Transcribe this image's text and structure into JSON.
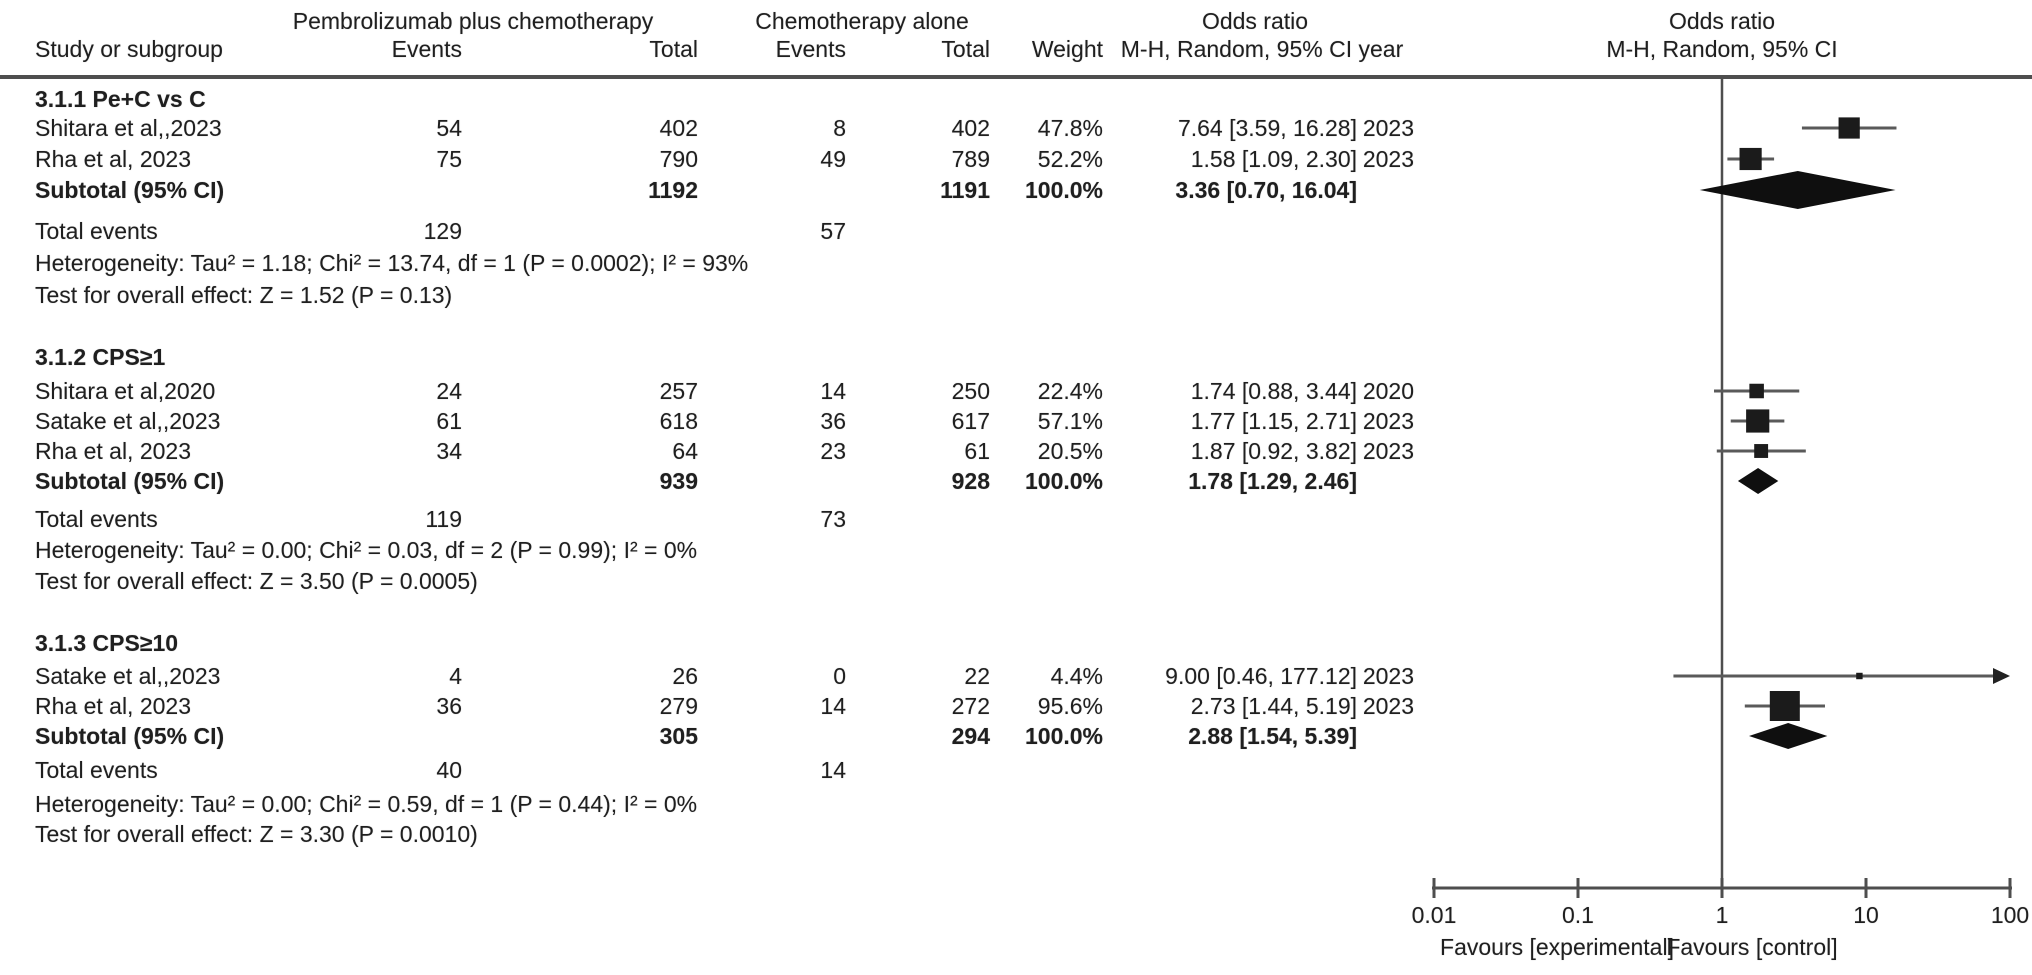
{
  "header": {
    "group1": "Pembrolizumab plus chemotherapy",
    "group2": "Chemotherapy alone",
    "col_study": "Study or subgroup",
    "col_events1": "Events",
    "col_total1": "Total",
    "col_events2": "Events",
    "col_total2": "Total",
    "col_weight": "Weight",
    "or_left_line1": "Odds ratio",
    "or_left_line2": "M-H, Random, 95% CI year",
    "or_right_line1": "Odds ratio",
    "or_right_line2": "M-H, Random, 95% CI"
  },
  "sections": [
    {
      "title": "3.1.1 Pe+C vs C",
      "studies": [
        {
          "name": "Shitara et al,,2023",
          "events1": "54",
          "total1": "402",
          "events2": "8",
          "total2": "402",
          "weight": "47.8%",
          "or_ci": "7.64 [3.59, 16.28]",
          "year": "2023"
        },
        {
          "name": "Rha et al, 2023",
          "events1": "75",
          "total1": "790",
          "events2": "49",
          "total2": "789",
          "weight": "52.2%",
          "or_ci": "1.58 [1.09, 2.30]",
          "year": "2023"
        }
      ],
      "subtotal": {
        "label": "Subtotal (95% CI)",
        "total1": "1192",
        "total2": "1191",
        "weight": "100.0%",
        "or_ci": "3.36 [0.70, 16.04]"
      },
      "total_events": {
        "label": "Total events",
        "events1": "129",
        "events2": "57"
      },
      "heterogeneity": "Heterogeneity: Tau² = 1.18; Chi² = 13.74, df = 1 (P = 0.0002); I² = 93%",
      "overall_effect": "Test for overall effect: Z = 1.52 (P = 0.13)"
    },
    {
      "title": "3.1.2 CPS≥1",
      "studies": [
        {
          "name": "Shitara et al,2020",
          "events1": "24",
          "total1": "257",
          "events2": "14",
          "total2": "250",
          "weight": "22.4%",
          "or_ci": "1.74 [0.88, 3.44]",
          "year": "2020"
        },
        {
          "name": "Satake et al,,2023",
          "events1": "61",
          "total1": "618",
          "events2": "36",
          "total2": "617",
          "weight": "57.1%",
          "or_ci": "1.77 [1.15, 2.71]",
          "year": "2023"
        },
        {
          "name": "Rha et al, 2023",
          "events1": "34",
          "total1": "64",
          "events2": "23",
          "total2": "61",
          "weight": "20.5%",
          "or_ci": "1.87 [0.92, 3.82]",
          "year": "2023"
        }
      ],
      "subtotal": {
        "label": "Subtotal (95% CI)",
        "total1": "939",
        "total2": "928",
        "weight": "100.0%",
        "or_ci": "1.78 [1.29, 2.46]"
      },
      "total_events": {
        "label": "Total events",
        "events1": "119",
        "events2": "73"
      },
      "heterogeneity": "Heterogeneity: Tau² = 0.00; Chi² = 0.03, df = 2 (P = 0.99); I² = 0%",
      "overall_effect": "Test for overall effect: Z = 3.50 (P = 0.0005)"
    },
    {
      "title": "3.1.3 CPS≥10",
      "studies": [
        {
          "name": "Satake et al,,2023",
          "events1": "4",
          "total1": "26",
          "events2": "0",
          "total2": "22",
          "weight": "4.4%",
          "or_ci": "9.00 [0.46, 177.12]",
          "year": "2023"
        },
        {
          "name": "Rha et al, 2023",
          "events1": "36",
          "total1": "279",
          "events2": "14",
          "total2": "272",
          "weight": "95.6%",
          "or_ci": "2.73 [1.44, 5.19]",
          "year": "2023"
        }
      ],
      "subtotal": {
        "label": "Subtotal (95% CI)",
        "total1": "305",
        "total2": "294",
        "weight": "100.0%",
        "or_ci": "2.88 [1.54, 5.39]"
      },
      "total_events": {
        "label": "Total events",
        "events1": "40",
        "events2": "14"
      },
      "heterogeneity": "Heterogeneity: Tau² = 0.00; Chi² = 0.59, df = 1 (P = 0.44); I² = 0%",
      "overall_effect": "Test for overall effect: Z = 3.30 (P = 0.0010)"
    }
  ],
  "chart_data": {
    "type": "scatter",
    "subtype": "forest_plot_meta_analysis",
    "effect_measure": "Odds ratio (M-H, Random, 95% CI)",
    "x_scale": "log10",
    "xlim": [
      0.01,
      100
    ],
    "x_ticks": [
      0.01,
      0.1,
      1,
      10,
      100
    ],
    "x_tick_labels": [
      "0.01",
      "0.1",
      "1",
      "10",
      "100"
    ],
    "no_effect_x": 1,
    "favours_left": "Favours [experimental]",
    "favours_right": "Favours [control]",
    "groups": [
      {
        "name": "3.1.1 Pe+C vs C",
        "studies": [
          {
            "label": "Shitara et al,,2023",
            "or": 7.64,
            "ci_low": 3.59,
            "ci_high": 16.28,
            "weight_pct": 47.8,
            "year": 2023
          },
          {
            "label": "Rha et al, 2023",
            "or": 1.58,
            "ci_low": 1.09,
            "ci_high": 2.3,
            "weight_pct": 52.2,
            "year": 2023
          }
        ],
        "subtotal": {
          "or": 3.36,
          "ci_low": 0.7,
          "ci_high": 16.04
        }
      },
      {
        "name": "3.1.2 CPS≥1",
        "studies": [
          {
            "label": "Shitara et al,2020",
            "or": 1.74,
            "ci_low": 0.88,
            "ci_high": 3.44,
            "weight_pct": 22.4,
            "year": 2020
          },
          {
            "label": "Satake et al,,2023",
            "or": 1.77,
            "ci_low": 1.15,
            "ci_high": 2.71,
            "weight_pct": 57.1,
            "year": 2023
          },
          {
            "label": "Rha et al, 2023",
            "or": 1.87,
            "ci_low": 0.92,
            "ci_high": 3.82,
            "weight_pct": 20.5,
            "year": 2023
          }
        ],
        "subtotal": {
          "or": 1.78,
          "ci_low": 1.29,
          "ci_high": 2.46
        }
      },
      {
        "name": "3.1.3 CPS≥10",
        "studies": [
          {
            "label": "Satake et al,,2023",
            "or": 9.0,
            "ci_low": 0.46,
            "ci_high": 177.12,
            "weight_pct": 4.4,
            "year": 2023
          },
          {
            "label": "Rha et al, 2023",
            "or": 2.73,
            "ci_low": 1.44,
            "ci_high": 5.19,
            "weight_pct": 95.6,
            "year": 2023
          }
        ],
        "subtotal": {
          "or": 2.88,
          "ci_low": 1.54,
          "ci_high": 5.39
        }
      }
    ]
  }
}
